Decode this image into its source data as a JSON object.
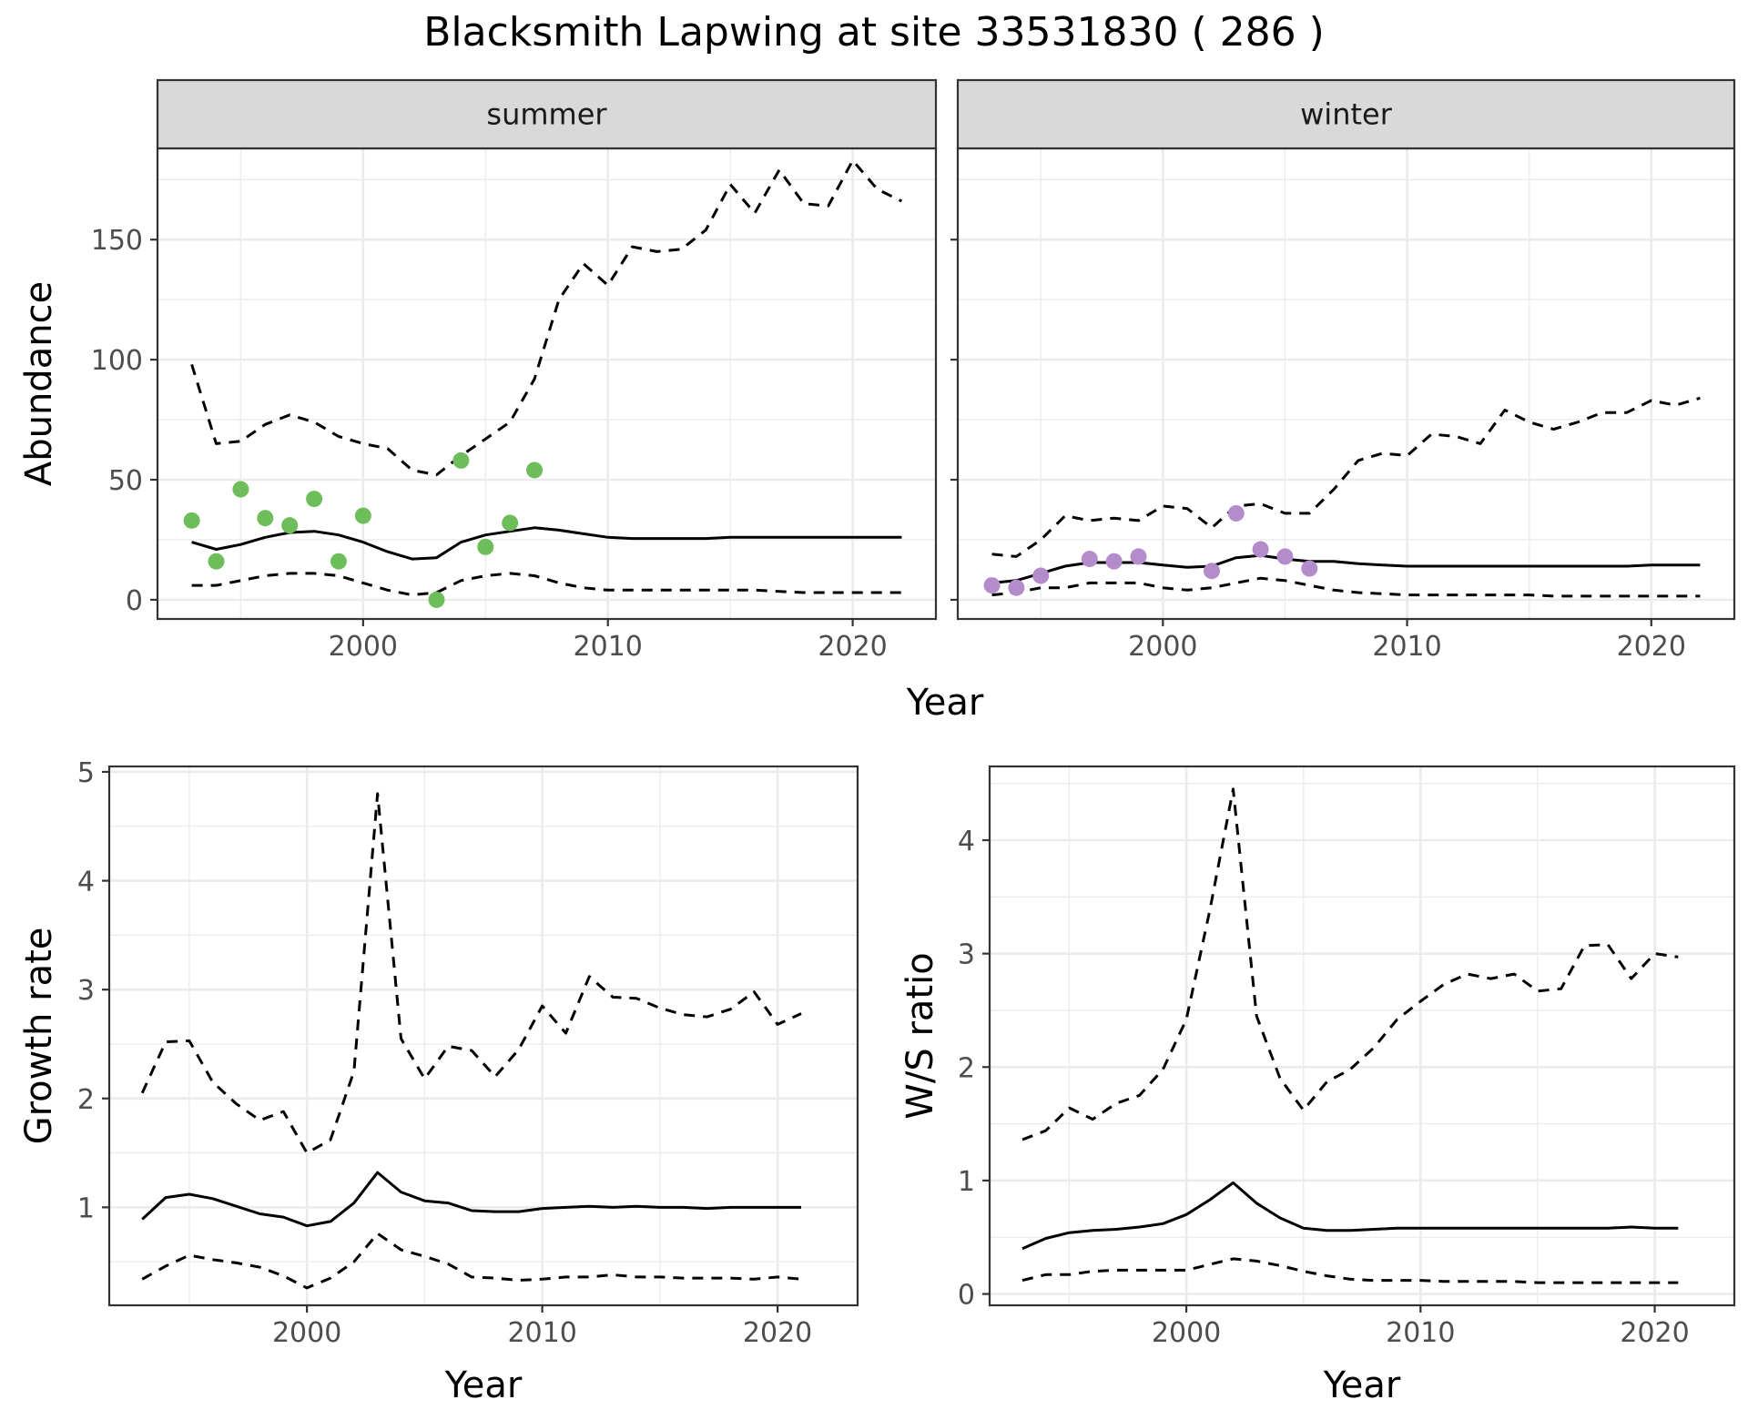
{
  "title": "Blacksmith Lapwing at site 33531830 ( 286 )",
  "colors": {
    "summer_points": "#6DBE5A",
    "winter_points": "#B48CCB",
    "line": "#000000",
    "grid": "#EBEBEB",
    "strip_bg": "#D9D9D9"
  },
  "chart_data": [
    {
      "type": "line",
      "panel": "summer",
      "strip_label": "summer",
      "ylabel": "Abundance",
      "xlim": [
        1991.6,
        2023.4
      ],
      "ylim": [
        -8,
        188
      ],
      "x_ticks": [
        2000,
        2010,
        2020
      ],
      "y_ticks": [
        0,
        50,
        100,
        150
      ],
      "x_tick_labels": [
        "2000",
        "2010",
        "2020"
      ],
      "y_tick_labels": [
        "0",
        "50",
        "100",
        "150"
      ],
      "series": [
        {
          "style": "solid",
          "x": [
            1993,
            1994,
            1995,
            1996,
            1997,
            1998,
            1999,
            2000,
            2001,
            2002,
            2003,
            2004,
            2005,
            2006,
            2007,
            2008,
            2009,
            2010,
            2011,
            2012,
            2013,
            2014,
            2015,
            2016,
            2017,
            2018,
            2019,
            2020,
            2021,
            2022
          ],
          "y": [
            24,
            21,
            23,
            26,
            28,
            28.5,
            27,
            24,
            20,
            17,
            17.5,
            24,
            27,
            28.5,
            30,
            29,
            27.5,
            26,
            25.5,
            25.5,
            25.5,
            25.5,
            26,
            26,
            26,
            26,
            26,
            26,
            26,
            26
          ]
        },
        {
          "style": "dashed",
          "x": [
            1993,
            1994,
            1995,
            1996,
            1997,
            1998,
            1999,
            2000,
            2001,
            2002,
            2003,
            2004,
            2005,
            2006,
            2007,
            2008,
            2009,
            2010,
            2011,
            2012,
            2013,
            2014,
            2015,
            2016,
            2017,
            2018,
            2019,
            2020,
            2021,
            2022
          ],
          "y": [
            98,
            65,
            66,
            73,
            77,
            74,
            68,
            65,
            63,
            54,
            52,
            60,
            67,
            74,
            92,
            125,
            140,
            131,
            147,
            145,
            146,
            154,
            173,
            161,
            179,
            165,
            164,
            183,
            171,
            166
          ]
        },
        {
          "style": "dashed",
          "x": [
            1993,
            1994,
            1995,
            1996,
            1997,
            1998,
            1999,
            2000,
            2001,
            2002,
            2003,
            2004,
            2005,
            2006,
            2007,
            2008,
            2009,
            2010,
            2011,
            2012,
            2013,
            2014,
            2015,
            2016,
            2017,
            2018,
            2019,
            2020,
            2021,
            2022
          ],
          "y": [
            6,
            6,
            8,
            10,
            11,
            11,
            10,
            7,
            4,
            2,
            3,
            8,
            10,
            11,
            10,
            7,
            5,
            4,
            4,
            4,
            4,
            4,
            4,
            4,
            3.5,
            3,
            3,
            3,
            3,
            3
          ]
        }
      ],
      "points": {
        "x": [
          1993,
          1994,
          1995,
          1996,
          1997,
          1998,
          1999,
          2000,
          2003,
          2004,
          2005,
          2006,
          2007
        ],
        "y": [
          33,
          16,
          46,
          34,
          31,
          42,
          16,
          35,
          0,
          58,
          22,
          32,
          54
        ]
      }
    },
    {
      "type": "line",
      "panel": "winter",
      "strip_label": "winter",
      "xlim": [
        1991.6,
        2023.4
      ],
      "ylim": [
        -8,
        188
      ],
      "x_ticks": [
        2000,
        2010,
        2020
      ],
      "y_ticks": [
        0,
        50,
        100,
        150
      ],
      "x_tick_labels": [
        "2000",
        "2010",
        "2020"
      ],
      "series": [
        {
          "style": "solid",
          "x": [
            1993,
            1994,
            1995,
            1996,
            1997,
            1998,
            1999,
            2000,
            2001,
            2002,
            2003,
            2004,
            2005,
            2006,
            2007,
            2008,
            2009,
            2010,
            2011,
            2012,
            2013,
            2014,
            2015,
            2016,
            2017,
            2018,
            2019,
            2020,
            2021,
            2022
          ],
          "y": [
            7,
            8,
            11,
            14,
            15.5,
            15.5,
            15.5,
            14.5,
            13.5,
            14,
            17.5,
            18.5,
            17,
            16,
            16,
            15,
            14.5,
            14,
            14,
            14,
            14,
            14,
            14,
            14,
            14,
            14,
            14,
            14.5,
            14.5,
            14.5
          ]
        },
        {
          "style": "dashed",
          "x": [
            1993,
            1994,
            1995,
            1996,
            1997,
            1998,
            1999,
            2000,
            2001,
            2002,
            2003,
            2004,
            2005,
            2006,
            2007,
            2008,
            2009,
            2010,
            2011,
            2012,
            2013,
            2014,
            2015,
            2016,
            2017,
            2018,
            2019,
            2020,
            2021,
            2022
          ],
          "y": [
            19,
            18,
            25,
            35,
            33,
            34,
            33,
            39,
            38,
            30,
            39,
            40,
            36,
            36,
            46,
            58,
            61,
            60,
            69,
            68,
            65,
            79,
            74,
            71,
            74,
            78,
            78,
            83,
            81,
            84
          ]
        },
        {
          "style": "dashed",
          "x": [
            1993,
            1994,
            1995,
            1996,
            1997,
            1998,
            1999,
            2000,
            2001,
            2002,
            2003,
            2004,
            2005,
            2006,
            2007,
            2008,
            2009,
            2010,
            2011,
            2012,
            2013,
            2014,
            2015,
            2016,
            2017,
            2018,
            2019,
            2020,
            2021,
            2022
          ],
          "y": [
            2,
            3,
            5,
            5,
            7,
            7,
            7,
            5,
            4,
            5,
            7,
            9,
            8,
            6,
            4,
            3,
            2.5,
            2,
            2,
            2,
            2,
            2,
            2,
            1.5,
            1.5,
            1.5,
            1.5,
            1.5,
            1.5,
            1.5
          ]
        }
      ],
      "points": {
        "x": [
          1993,
          1994,
          1995,
          1997,
          1998,
          1999,
          2002,
          2003,
          2004,
          2005,
          2006
        ],
        "y": [
          6,
          5,
          10,
          17,
          16,
          18,
          12,
          36,
          21,
          18,
          13
        ]
      }
    },
    {
      "type": "line",
      "panel": "growth",
      "ylabel": "Growth rate",
      "xlabel": "Year",
      "xlim": [
        1991.6,
        2023.4
      ],
      "ylim": [
        0.1,
        5.05
      ],
      "x_ticks": [
        2000,
        2010,
        2020
      ],
      "y_ticks": [
        1,
        2,
        3,
        4,
        5
      ],
      "x_tick_labels": [
        "2000",
        "2010",
        "2020"
      ],
      "y_tick_labels": [
        "1",
        "2",
        "3",
        "4",
        "5"
      ],
      "series": [
        {
          "style": "solid",
          "x": [
            1993,
            1994,
            1995,
            1996,
            1997,
            1998,
            1999,
            2000,
            2001,
            2002,
            2003,
            2004,
            2005,
            2006,
            2007,
            2008,
            2009,
            2010,
            2011,
            2012,
            2013,
            2014,
            2015,
            2016,
            2017,
            2018,
            2019,
            2020,
            2021
          ],
          "y": [
            0.89,
            1.09,
            1.12,
            1.08,
            1.01,
            0.94,
            0.91,
            0.83,
            0.87,
            1.04,
            1.32,
            1.14,
            1.06,
            1.04,
            0.97,
            0.96,
            0.96,
            0.99,
            1.0,
            1.01,
            1.0,
            1.01,
            1.0,
            1.0,
            0.99,
            1.0,
            1.0,
            1.0,
            1.0
          ]
        },
        {
          "style": "dashed",
          "x": [
            1993,
            1994,
            1995,
            1996,
            1997,
            1998,
            1999,
            2000,
            2001,
            2002,
            2003,
            2004,
            2005,
            2006,
            2007,
            2008,
            2009,
            2010,
            2011,
            2012,
            2013,
            2014,
            2015,
            2016,
            2017,
            2018,
            2019,
            2020,
            2021
          ],
          "y": [
            2.05,
            2.52,
            2.53,
            2.15,
            1.95,
            1.8,
            1.88,
            1.5,
            1.62,
            2.25,
            4.8,
            2.55,
            2.18,
            2.48,
            2.44,
            2.2,
            2.45,
            2.85,
            2.6,
            3.12,
            2.93,
            2.92,
            2.83,
            2.77,
            2.75,
            2.82,
            2.98,
            2.68,
            2.78
          ]
        },
        {
          "style": "dashed",
          "x": [
            1993,
            1994,
            1995,
            1996,
            1997,
            1998,
            1999,
            2000,
            2001,
            2002,
            2003,
            2004,
            2005,
            2006,
            2007,
            2008,
            2009,
            2010,
            2011,
            2012,
            2013,
            2014,
            2015,
            2016,
            2017,
            2018,
            2019,
            2020,
            2021
          ],
          "y": [
            0.34,
            0.46,
            0.56,
            0.52,
            0.49,
            0.45,
            0.37,
            0.26,
            0.35,
            0.5,
            0.76,
            0.61,
            0.55,
            0.48,
            0.36,
            0.35,
            0.33,
            0.34,
            0.36,
            0.36,
            0.38,
            0.36,
            0.36,
            0.35,
            0.35,
            0.35,
            0.34,
            0.36,
            0.34
          ]
        }
      ]
    },
    {
      "type": "line",
      "panel": "ws_ratio",
      "ylabel": "W/S ratio",
      "xlabel": "Year",
      "xlim": [
        1991.6,
        2023.4
      ],
      "ylim": [
        -0.1,
        4.65
      ],
      "x_ticks": [
        2000,
        2010,
        2020
      ],
      "y_ticks": [
        0,
        1,
        2,
        3,
        4
      ],
      "x_tick_labels": [
        "2000",
        "2010",
        "2020"
      ],
      "y_tick_labels": [
        "0",
        "1",
        "2",
        "3",
        "4"
      ],
      "series": [
        {
          "style": "solid",
          "x": [
            1993,
            1994,
            1995,
            1996,
            1997,
            1998,
            1999,
            2000,
            2001,
            2002,
            2003,
            2004,
            2005,
            2006,
            2007,
            2008,
            2009,
            2010,
            2011,
            2012,
            2013,
            2014,
            2015,
            2016,
            2017,
            2018,
            2019,
            2020,
            2021
          ],
          "y": [
            0.4,
            0.49,
            0.54,
            0.56,
            0.57,
            0.59,
            0.62,
            0.7,
            0.83,
            0.98,
            0.8,
            0.67,
            0.58,
            0.56,
            0.56,
            0.57,
            0.58,
            0.58,
            0.58,
            0.58,
            0.58,
            0.58,
            0.58,
            0.58,
            0.58,
            0.58,
            0.59,
            0.58,
            0.58
          ]
        },
        {
          "style": "dashed",
          "x": [
            1993,
            1994,
            1995,
            1996,
            1997,
            1998,
            1999,
            2000,
            2001,
            2002,
            2003,
            2004,
            2005,
            2006,
            2007,
            2008,
            2009,
            2010,
            2011,
            2012,
            2013,
            2014,
            2015,
            2016,
            2017,
            2018,
            2019,
            2020,
            2021
          ],
          "y": [
            1.36,
            1.44,
            1.64,
            1.54,
            1.68,
            1.75,
            1.98,
            2.42,
            3.38,
            4.45,
            2.45,
            1.9,
            1.62,
            1.87,
            1.98,
            2.17,
            2.42,
            2.58,
            2.73,
            2.82,
            2.78,
            2.82,
            2.67,
            2.69,
            3.07,
            3.08,
            2.78,
            3.0,
            2.97
          ]
        },
        {
          "style": "dashed",
          "x": [
            1993,
            1994,
            1995,
            1996,
            1997,
            1998,
            1999,
            2000,
            2001,
            2002,
            2003,
            2004,
            2005,
            2006,
            2007,
            2008,
            2009,
            2010,
            2011,
            2012,
            2013,
            2014,
            2015,
            2016,
            2017,
            2018,
            2019,
            2020,
            2021
          ],
          "y": [
            0.12,
            0.17,
            0.17,
            0.2,
            0.21,
            0.21,
            0.21,
            0.21,
            0.26,
            0.31,
            0.29,
            0.25,
            0.2,
            0.16,
            0.13,
            0.12,
            0.12,
            0.12,
            0.11,
            0.11,
            0.11,
            0.11,
            0.1,
            0.1,
            0.1,
            0.1,
            0.1,
            0.1,
            0.1
          ]
        }
      ]
    }
  ],
  "shared_xlabel_top": "Year"
}
